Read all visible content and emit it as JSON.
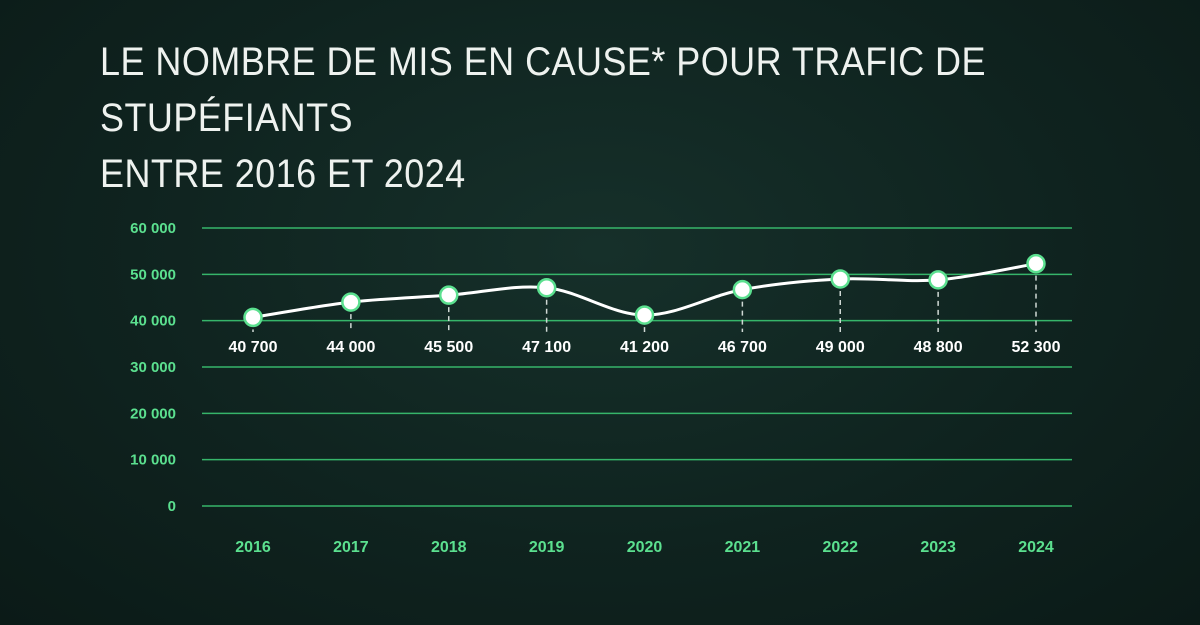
{
  "title_line1": "LE NOMBRE DE MIS EN CAUSE* POUR TRAFIC DE STUPÉFIANTS",
  "title_line2": "ENTRE 2016 ET 2024",
  "colors": {
    "accent": "#5be08f",
    "grid": "#36b56a",
    "line": "#ffffff",
    "background": "#10241f"
  },
  "chart_data": {
    "type": "line",
    "title": "LE NOMBRE DE MIS EN CAUSE* POUR TRAFIC DE STUPÉFIANTS ENTRE 2016 ET 2024",
    "categories": [
      "2016",
      "2017",
      "2018",
      "2019",
      "2020",
      "2021",
      "2022",
      "2023",
      "2024"
    ],
    "values": [
      40700,
      44000,
      45500,
      47100,
      41200,
      46700,
      49000,
      48800,
      52300
    ],
    "data_labels": [
      "40 700",
      "44 000",
      "45 500",
      "47 100",
      "41 200",
      "46 700",
      "49 000",
      "48 800",
      "52 300"
    ],
    "y_ticks": [
      0,
      10000,
      20000,
      30000,
      40000,
      50000,
      60000
    ],
    "y_tick_labels": [
      "0",
      "10 000",
      "20 000",
      "30 000",
      "40 000",
      "50 000",
      "60 000"
    ],
    "ylim": [
      0,
      60000
    ],
    "grid": true,
    "xlabel": "",
    "ylabel": ""
  }
}
